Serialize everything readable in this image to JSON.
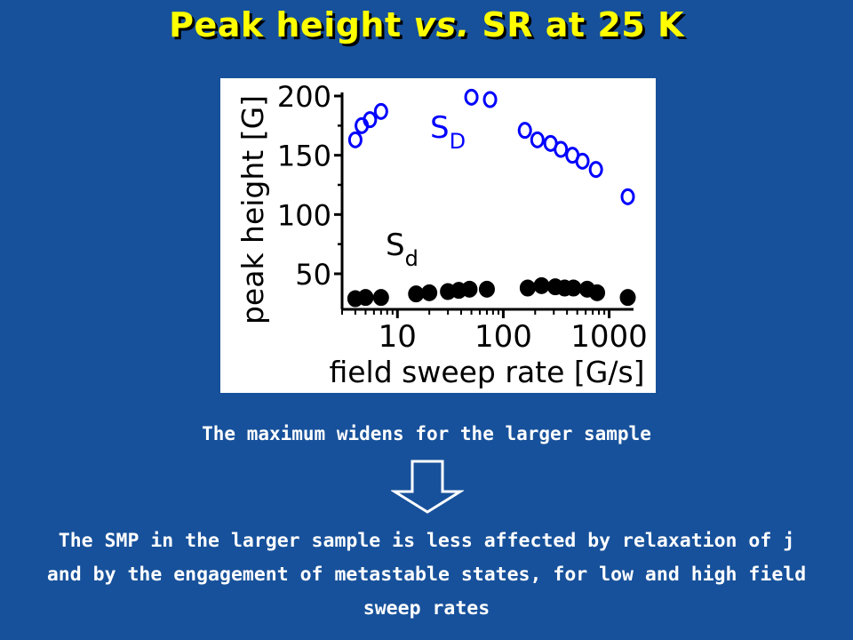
{
  "slide": {
    "title_pre": "Peak height ",
    "title_vs": "vs.",
    "title_post": " SR at 25 K",
    "caption_top": "The maximum widens for the larger sample",
    "caption_bottom": "The SMP in the larger sample is less affected by relaxation of j and by the engagement of metastable states, for low and high field sweep rates",
    "arrow_icon": "down-arrow-outline",
    "colors": {
      "background": "#17519b",
      "title": "#ffff00",
      "series_D": "#0000ff",
      "series_d": "#000000"
    }
  },
  "chart_data": {
    "type": "scatter",
    "xlabel": "field sweep rate [G/s]",
    "ylabel": "peak height [G]",
    "x_scale": "log",
    "xlim": [
      3,
      1700
    ],
    "ylim": [
      20,
      200
    ],
    "x_ticks": [
      10,
      100,
      1000
    ],
    "x_tick_labels": [
      "10",
      "100",
      "1000"
    ],
    "y_ticks": [
      50,
      100,
      150,
      200
    ],
    "y_tick_labels": [
      "50",
      "100",
      "150",
      "200"
    ],
    "grid": false,
    "series": [
      {
        "name_main": "S",
        "name_sub": "D",
        "marker": "open-circle",
        "color": "#0000ff",
        "points": [
          [
            4,
            163
          ],
          [
            4.6,
            175
          ],
          [
            5.5,
            180
          ],
          [
            7,
            187
          ],
          [
            50,
            199
          ],
          [
            75,
            197
          ],
          [
            160,
            171
          ],
          [
            210,
            163
          ],
          [
            280,
            160
          ],
          [
            350,
            155
          ],
          [
            450,
            150
          ],
          [
            560,
            145
          ],
          [
            750,
            138
          ],
          [
            1500,
            115
          ]
        ]
      },
      {
        "name_main": "S",
        "name_sub": "d",
        "marker": "filled-circle",
        "color": "#000000",
        "points": [
          [
            4,
            29
          ],
          [
            5,
            30
          ],
          [
            7,
            30
          ],
          [
            15,
            33
          ],
          [
            20,
            34
          ],
          [
            30,
            35
          ],
          [
            38,
            36
          ],
          [
            48,
            37
          ],
          [
            70,
            37
          ],
          [
            170,
            38
          ],
          [
            230,
            40
          ],
          [
            310,
            39
          ],
          [
            380,
            38
          ],
          [
            460,
            38
          ],
          [
            620,
            37
          ],
          [
            770,
            34
          ],
          [
            1500,
            30
          ]
        ]
      }
    ]
  }
}
